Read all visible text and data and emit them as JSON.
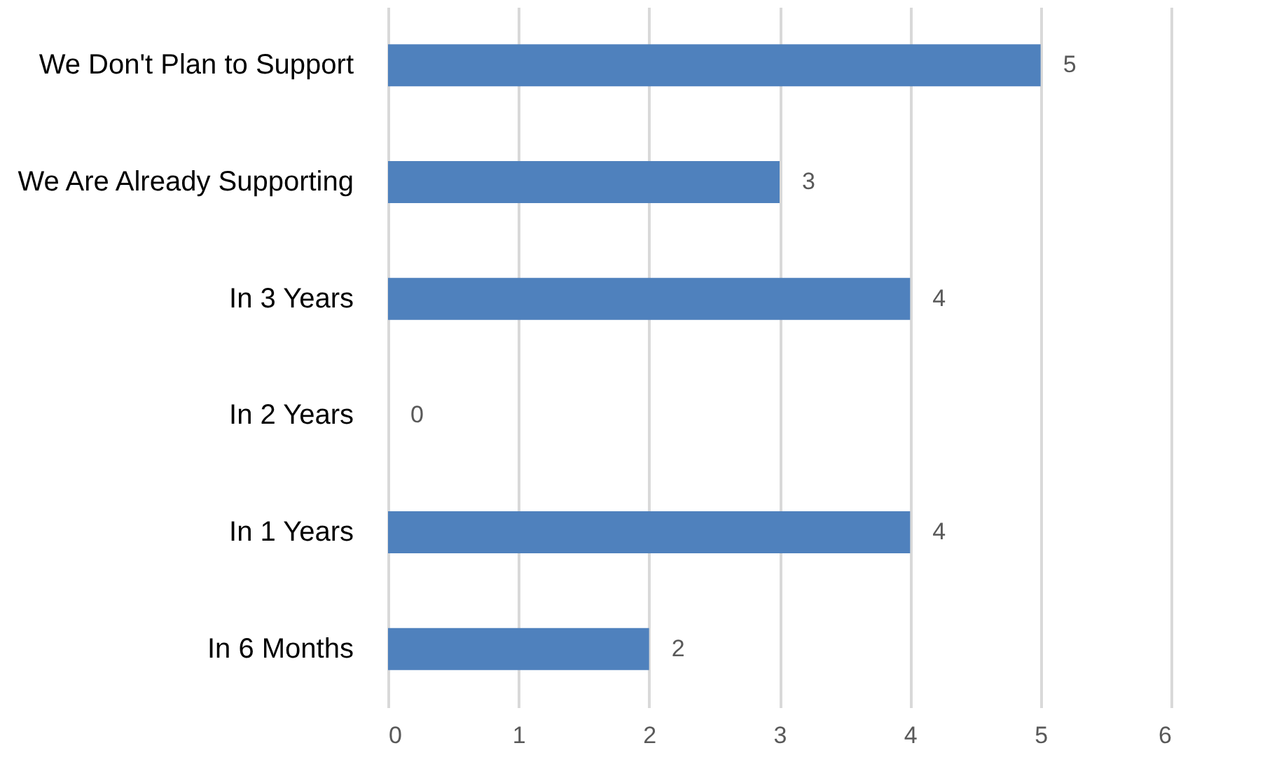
{
  "chart_data": {
    "type": "bar",
    "orientation": "horizontal",
    "categories": [
      "We Don't Plan to Support",
      "We Are Already Supporting",
      "In 3 Years",
      "In 2 Years",
      "In 1 Years",
      "In 6 Months"
    ],
    "values": [
      5,
      3,
      4,
      0,
      4,
      2
    ],
    "color": "#4f81bd",
    "xlim": [
      0,
      6
    ],
    "xticks": [
      0,
      1,
      2,
      3,
      4,
      5,
      6
    ],
    "grid": "x",
    "data_labels": true
  }
}
